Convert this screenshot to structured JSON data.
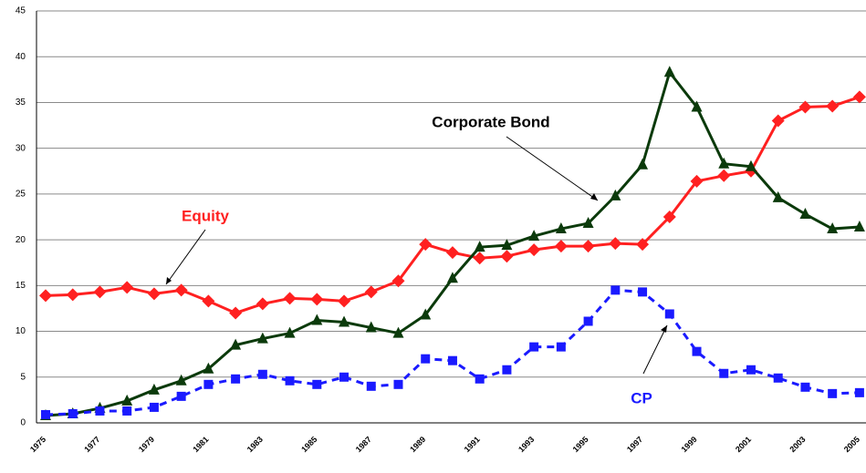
{
  "chart_data": {
    "type": "line",
    "categories": [
      "1975",
      null,
      "1977",
      null,
      "1979",
      null,
      "1981",
      null,
      "1983",
      null,
      "1985",
      null,
      "1987",
      null,
      "1989",
      null,
      "1991",
      null,
      "1993",
      null,
      "1995",
      null,
      "1997",
      null,
      "1999",
      null,
      "2001",
      null,
      "2003",
      null,
      "2005"
    ],
    "series": [
      {
        "name": "Equity",
        "color": "#ff2020",
        "marker": "diamond",
        "dashed": false,
        "values": [
          13.9,
          14.0,
          14.3,
          14.8,
          14.1,
          14.5,
          13.3,
          12.0,
          13.0,
          13.6,
          13.5,
          13.3,
          14.3,
          15.5,
          19.5,
          18.6,
          18.0,
          18.2,
          18.9,
          19.3,
          19.3,
          19.6,
          19.5,
          22.5,
          26.4,
          27.0,
          27.5,
          33.0,
          34.5,
          34.6,
          35.6
        ]
      },
      {
        "name": "Corporate Bond",
        "color": "#0b3a0b",
        "marker": "triangle",
        "dashed": false,
        "values": [
          0.8,
          1.0,
          1.6,
          2.4,
          3.6,
          4.6,
          5.9,
          8.5,
          9.2,
          9.8,
          11.2,
          11.0,
          10.4,
          9.8,
          11.8,
          15.8,
          19.2,
          19.4,
          20.4,
          21.2,
          21.8,
          24.8,
          28.2,
          38.3,
          34.5,
          28.3,
          28.0,
          24.6,
          22.8,
          21.2,
          21.4
        ]
      },
      {
        "name": "CP",
        "color": "#1a1aff",
        "marker": "square",
        "dashed": true,
        "values": [
          0.9,
          1.0,
          1.3,
          1.3,
          1.7,
          2.9,
          4.2,
          4.8,
          5.3,
          4.6,
          4.2,
          5.0,
          4.0,
          4.2,
          7.0,
          6.8,
          4.8,
          5.8,
          8.3,
          8.3,
          11.1,
          14.5,
          14.3,
          11.9,
          7.8,
          5.4,
          5.8,
          4.9,
          3.9,
          3.2,
          3.3
        ]
      }
    ],
    "ylim": [
      0,
      45
    ],
    "yticks": [
      0,
      5,
      10,
      15,
      20,
      25,
      30,
      35,
      40,
      45
    ],
    "grid": true
  }
}
